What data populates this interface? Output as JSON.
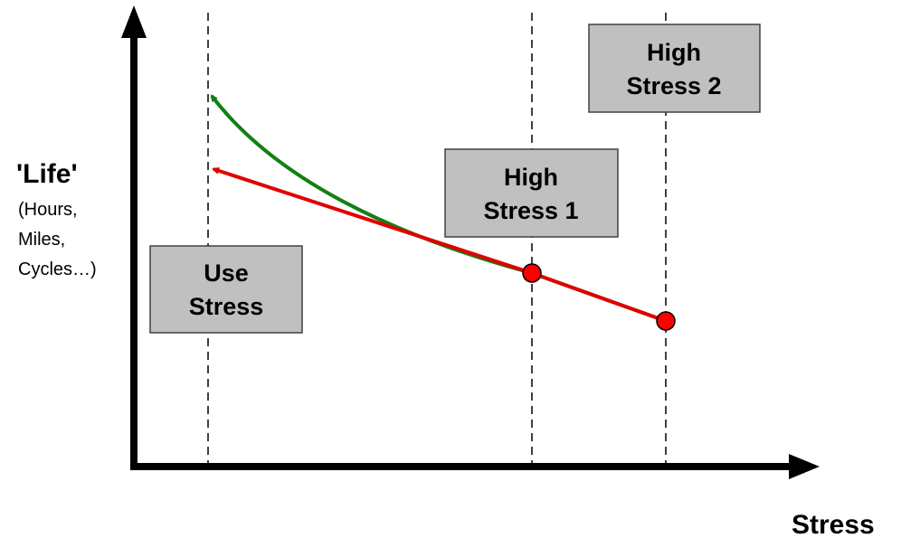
{
  "y_axis": {
    "title": "'Life'",
    "subtitle_lines": [
      "(Hours,",
      "Miles,",
      "Cycles…)"
    ]
  },
  "x_axis": {
    "title": "Stress"
  },
  "boxes": [
    {
      "lines": [
        "Use",
        "Stress"
      ]
    },
    {
      "lines": [
        "High",
        "Stress 1"
      ]
    },
    {
      "lines": [
        "High",
        "Stress 2"
      ]
    }
  ]
}
